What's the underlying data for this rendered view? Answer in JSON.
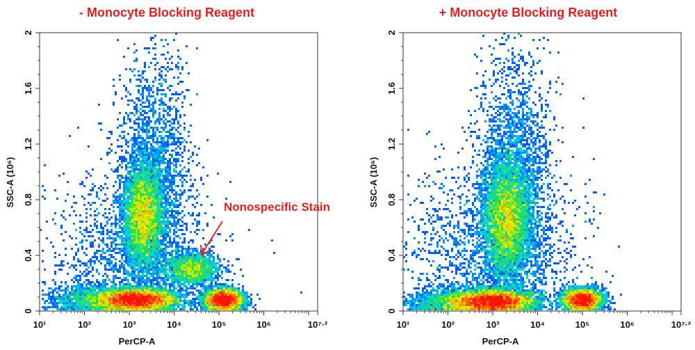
{
  "chart_data": [
    {
      "type": "scatter",
      "subtype": "flow-cytometry-density",
      "title": "- Monocyte Blocking Reagent",
      "xlabel": "PerCP-A",
      "ylabel": "SSC-A (10⁶)",
      "xscale": "log",
      "xlim_log10": [
        1,
        7.2
      ],
      "ylim": [
        0,
        2
      ],
      "xticks": [
        "10¹",
        "10²",
        "10³",
        "10⁴",
        "10⁵",
        "10⁶",
        "10⁷·²"
      ],
      "yticks": [
        "0",
        "0.4",
        "0.8",
        "1.2",
        "1.6",
        "2"
      ],
      "grid": false,
      "populations": [
        {
          "x_log10": 3.15,
          "y": 0.08,
          "sx": 0.45,
          "sy": 0.04,
          "weight": 0.3
        },
        {
          "x_log10": 3.3,
          "y": 0.68,
          "sx": 0.22,
          "sy": 0.18,
          "weight": 0.2
        },
        {
          "x_log10": 3.55,
          "y": 0.95,
          "sx": 0.4,
          "sy": 0.45,
          "weight": 0.12
        },
        {
          "x_log10": 5.1,
          "y": 0.08,
          "sx": 0.22,
          "sy": 0.04,
          "weight": 0.17
        },
        {
          "x_log10": 4.4,
          "y": 0.3,
          "sx": 0.3,
          "sy": 0.06,
          "weight": 0.08
        },
        {
          "x_log10": 2.1,
          "y": 0.08,
          "sx": 0.5,
          "sy": 0.06,
          "weight": 0.05
        },
        {
          "x_log10": 3.0,
          "y": 0.4,
          "sx": 0.9,
          "sy": 0.3,
          "weight": 0.08
        }
      ],
      "annotation": {
        "text": "Nonospecific Stain",
        "points_to": {
          "x_log10": 4.6,
          "y": 0.41
        }
      }
    },
    {
      "type": "scatter",
      "subtype": "flow-cytometry-density",
      "title": "+ Monocyte Blocking Reagent",
      "xlabel": "PerCP-A",
      "ylabel": "SSC-A (10⁶)",
      "xscale": "log",
      "xlim_log10": [
        1,
        7.2
      ],
      "ylim": [
        0,
        2
      ],
      "xticks": [
        "10¹",
        "10²",
        "10³",
        "10⁴",
        "10⁵",
        "10⁶",
        "10⁷·²"
      ],
      "yticks": [
        "0",
        "0.4",
        "0.8",
        "1.2",
        "1.6",
        "2"
      ],
      "grid": false,
      "populations": [
        {
          "x_log10": 3.0,
          "y": 0.07,
          "sx": 0.45,
          "sy": 0.04,
          "weight": 0.3
        },
        {
          "x_log10": 3.3,
          "y": 0.66,
          "sx": 0.25,
          "sy": 0.2,
          "weight": 0.22
        },
        {
          "x_log10": 3.5,
          "y": 0.95,
          "sx": 0.4,
          "sy": 0.45,
          "weight": 0.13
        },
        {
          "x_log10": 5.0,
          "y": 0.08,
          "sx": 0.22,
          "sy": 0.04,
          "weight": 0.16
        },
        {
          "x_log10": 2.0,
          "y": 0.06,
          "sx": 0.5,
          "sy": 0.05,
          "weight": 0.06
        },
        {
          "x_log10": 3.0,
          "y": 0.45,
          "sx": 0.9,
          "sy": 0.3,
          "weight": 0.1
        }
      ]
    }
  ],
  "colors": {
    "title": "#e02020",
    "low": "#0000c0",
    "high": "#ff1a00"
  }
}
